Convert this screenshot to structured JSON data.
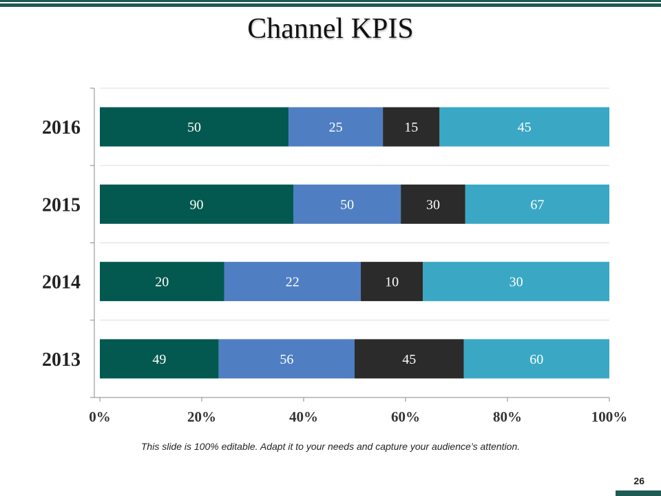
{
  "slide": {
    "title": "Channel KPIS",
    "footer_note": "This slide is 100% editable. Adapt it to your needs and capture your audience’s attention.",
    "page_number": "26"
  },
  "colors": {
    "accent": "#1e5b55",
    "series": [
      "#03594f",
      "#4f7ec2",
      "#2b2b2b",
      "#3aa8c4"
    ]
  },
  "chart_data": {
    "type": "bar",
    "orientation": "horizontal",
    "stacking": "percent",
    "title": "",
    "categories": [
      "2016",
      "2015",
      "2014",
      "2013"
    ],
    "series": [
      {
        "values": [
          50,
          90,
          20,
          49
        ]
      },
      {
        "values": [
          25,
          50,
          22,
          56
        ]
      },
      {
        "values": [
          15,
          30,
          10,
          45
        ]
      },
      {
        "values": [
          45,
          67,
          30,
          60
        ]
      }
    ],
    "xaxis_ticks": [
      "0%",
      "20%",
      "40%",
      "60%",
      "80%",
      "100%"
    ],
    "xlim": [
      0,
      100
    ],
    "grid": true,
    "legend": "none",
    "data_labels": true
  }
}
